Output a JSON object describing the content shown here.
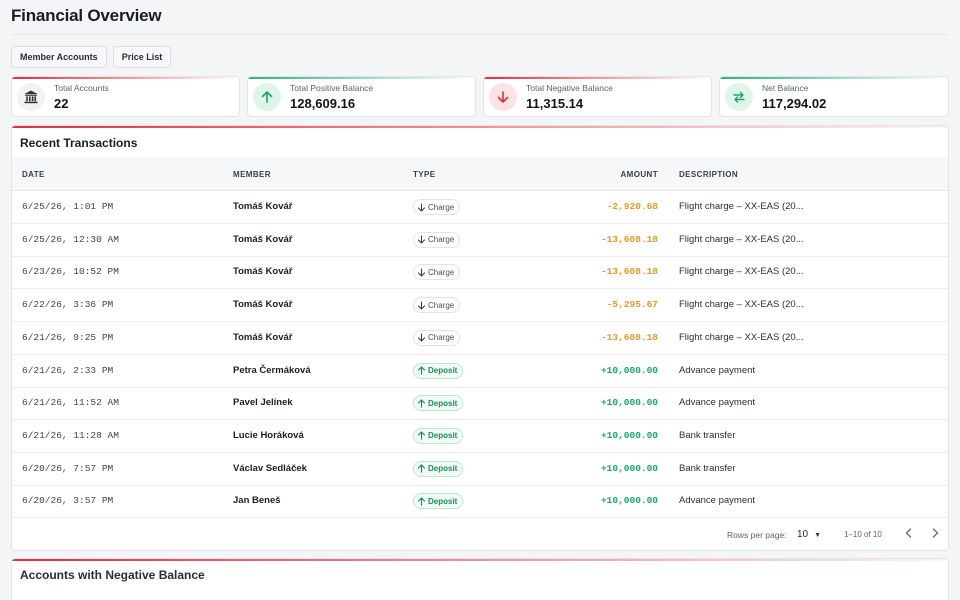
{
  "page": {
    "title": "Financial Overview"
  },
  "tabs": [
    {
      "label": "Member Accounts"
    },
    {
      "label": "Price List"
    }
  ],
  "stats": [
    {
      "label": "Total Accounts",
      "value": "22",
      "icon": "bank-icon",
      "accent": "#e0303a"
    },
    {
      "label": "Total Positive Balance",
      "value": "128,609.16",
      "icon": "arrow-up-icon",
      "accent": "#2bb57a"
    },
    {
      "label": "Total Negative Balance",
      "value": "11,315.14",
      "icon": "arrow-down-icon",
      "accent": "#e0303a"
    },
    {
      "label": "Net Balance",
      "value": "117,294.02",
      "icon": "swap-icon",
      "accent": "#2bb57a"
    }
  ],
  "transactions": {
    "title": "Recent Transactions",
    "columns": {
      "date": "DATE",
      "member": "MEMBER",
      "type": "TYPE",
      "amount": "AMOUNT",
      "description": "DESCRIPTION"
    },
    "rows": [
      {
        "date": "6/25/26, 1:01 PM",
        "member": "Tomáš Kovář",
        "type": "Charge",
        "amount": "-2,920.68",
        "description": "Flight charge – XX-EAS (20..."
      },
      {
        "date": "6/25/26, 12:30 AM",
        "member": "Tomáš Kovář",
        "type": "Charge",
        "amount": "-13,608.18",
        "description": "Flight charge – XX-EAS (20..."
      },
      {
        "date": "6/23/26, 10:52 PM",
        "member": "Tomáš Kovář",
        "type": "Charge",
        "amount": "-13,608.18",
        "description": "Flight charge – XX-EAS (20..."
      },
      {
        "date": "6/22/26, 3:36 PM",
        "member": "Tomáš Kovář",
        "type": "Charge",
        "amount": "-5,295.67",
        "description": "Flight charge – XX-EAS (20..."
      },
      {
        "date": "6/21/26, 9:25 PM",
        "member": "Tomáš Kovář",
        "type": "Charge",
        "amount": "-13,608.18",
        "description": "Flight charge – XX-EAS (20..."
      },
      {
        "date": "6/21/26, 2:33 PM",
        "member": "Petra Čermáková",
        "type": "Deposit",
        "amount": "+10,000.00",
        "description": "Advance payment"
      },
      {
        "date": "6/21/26, 11:52 AM",
        "member": "Pavel Jelínek",
        "type": "Deposit",
        "amount": "+10,000.00",
        "description": "Advance payment"
      },
      {
        "date": "6/21/26, 11:28 AM",
        "member": "Lucie Horáková",
        "type": "Deposit",
        "amount": "+10,000.00",
        "description": "Bank transfer"
      },
      {
        "date": "6/20/26, 7:57 PM",
        "member": "Václav Sedláček",
        "type": "Deposit",
        "amount": "+10,000.00",
        "description": "Bank transfer"
      },
      {
        "date": "6/20/26, 3:57 PM",
        "member": "Jan Beneš",
        "type": "Deposit",
        "amount": "+10,000.00",
        "description": "Advance payment"
      }
    ],
    "pagination": {
      "rows_label": "Rows per page:",
      "rows_value": "10",
      "range": "1–10 of 10"
    }
  },
  "negative_accounts": {
    "title": "Accounts with Negative Balance"
  },
  "colors": {
    "charge_amount": "#e8982a",
    "deposit_amount": "#1ea46b",
    "accent_red": "#e0303a"
  }
}
